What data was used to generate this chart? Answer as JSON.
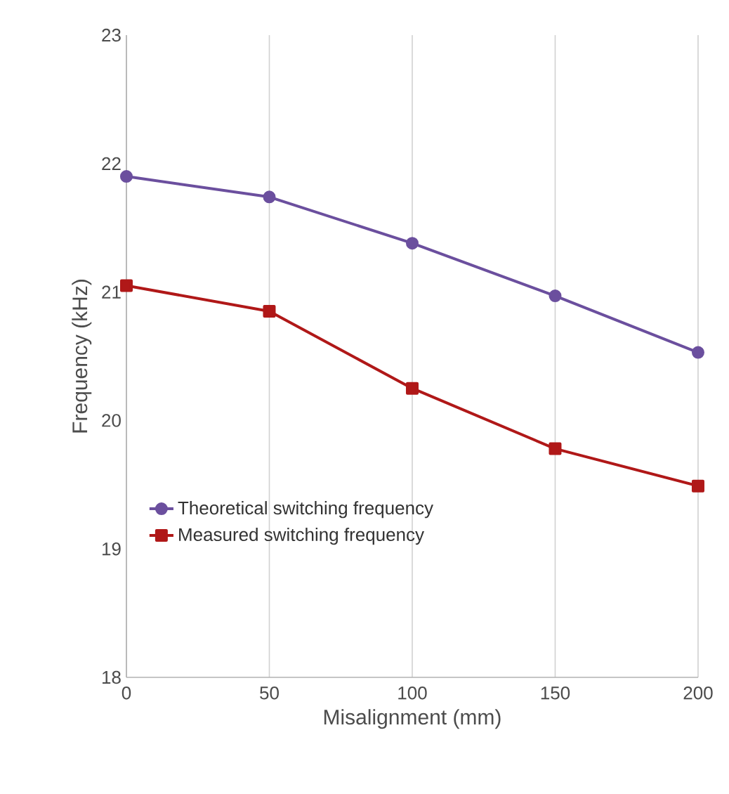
{
  "chart_data": {
    "type": "line",
    "xlabel": "Misalignment (mm)",
    "ylabel": "Frequency (kHz)",
    "x": [
      0,
      50,
      100,
      150,
      200
    ],
    "series": [
      {
        "name": "Theoretical switching frequency",
        "color": "#6b4f9e",
        "marker": "circle",
        "values": [
          21.9,
          21.74,
          21.38,
          20.97,
          20.53
        ]
      },
      {
        "name": "Measured switching frequency",
        "color": "#b01818",
        "marker": "square",
        "values": [
          21.05,
          20.85,
          20.25,
          19.78,
          19.49
        ]
      }
    ],
    "xlim": [
      0,
      200
    ],
    "xticks": [
      0,
      50,
      100,
      150,
      200
    ],
    "ylim": [
      18,
      23
    ],
    "yticks": [
      18,
      19,
      20,
      21,
      22,
      23
    ],
    "grid": "x",
    "legend": "bottom left",
    "line_style": "solid"
  }
}
